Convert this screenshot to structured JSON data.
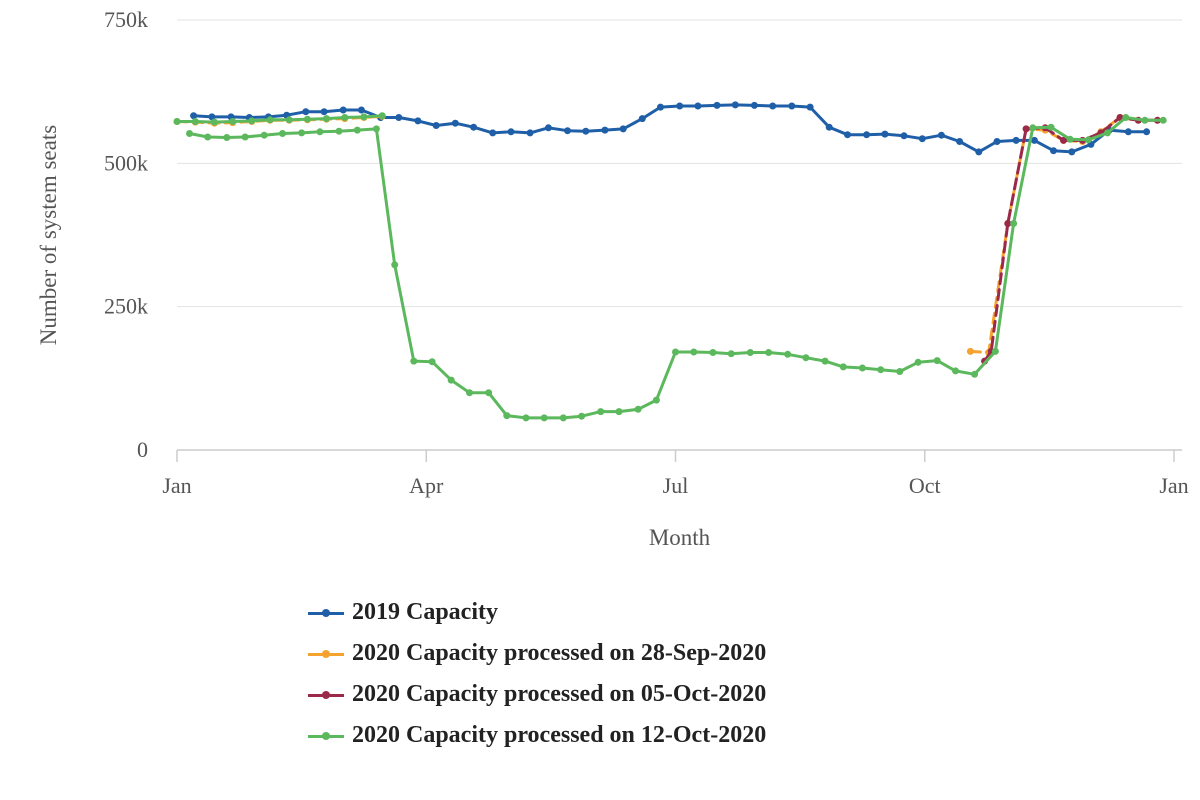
{
  "chart_data": {
    "type": "line",
    "title": "",
    "xlabel": "Month",
    "ylabel": "Number of system seats",
    "xlim": [
      0,
      12
    ],
    "ylim": [
      0,
      750000
    ],
    "x_ticks": [
      {
        "value": 0,
        "label": "Jan"
      },
      {
        "value": 3,
        "label": "Apr"
      },
      {
        "value": 6,
        "label": "Jul"
      },
      {
        "value": 9,
        "label": "Oct"
      },
      {
        "value": 12,
        "label": "Jan"
      }
    ],
    "y_ticks": [
      {
        "value": 0,
        "label": "0"
      },
      {
        "value": 250000,
        "label": "250k"
      },
      {
        "value": 500000,
        "label": "500k"
      },
      {
        "value": 750000,
        "label": "750k"
      }
    ],
    "grid": "horizontal",
    "legend_position": "bottom",
    "series": [
      {
        "name": "2019 Capacity",
        "color": "#1f5fa8",
        "dash": false,
        "points": [
          [
            0.2,
            583000
          ],
          [
            0.42,
            581000
          ],
          [
            0.65,
            581000
          ],
          [
            0.87,
            580000
          ],
          [
            1.1,
            581000
          ],
          [
            1.32,
            584000
          ],
          [
            1.55,
            590000
          ],
          [
            1.77,
            590000
          ],
          [
            2.0,
            593000
          ],
          [
            2.22,
            593000
          ],
          [
            2.45,
            580000
          ],
          [
            2.67,
            580000
          ],
          [
            2.9,
            574000
          ],
          [
            3.12,
            566000
          ],
          [
            3.35,
            570000
          ],
          [
            3.57,
            563000
          ],
          [
            3.8,
            553000
          ],
          [
            4.02,
            555000
          ],
          [
            4.25,
            553000
          ],
          [
            4.47,
            562000
          ],
          [
            4.7,
            557000
          ],
          [
            4.92,
            556000
          ],
          [
            5.15,
            558000
          ],
          [
            5.37,
            560000
          ],
          [
            5.6,
            578000
          ],
          [
            5.82,
            598000
          ],
          [
            6.05,
            600000
          ],
          [
            6.27,
            600000
          ],
          [
            6.5,
            601000
          ],
          [
            6.72,
            602000
          ],
          [
            6.95,
            601000
          ],
          [
            7.17,
            600000
          ],
          [
            7.4,
            600000
          ],
          [
            7.62,
            598000
          ],
          [
            7.85,
            563000
          ],
          [
            8.07,
            550000
          ],
          [
            8.3,
            550000
          ],
          [
            8.52,
            551000
          ],
          [
            8.75,
            548000
          ],
          [
            8.97,
            543000
          ],
          [
            9.2,
            549000
          ],
          [
            9.42,
            538000
          ],
          [
            9.65,
            520000
          ],
          [
            9.87,
            538000
          ],
          [
            10.1,
            540000
          ],
          [
            10.32,
            540000
          ],
          [
            10.55,
            522000
          ],
          [
            10.77,
            520000
          ],
          [
            11.0,
            533000
          ],
          [
            11.22,
            558000
          ],
          [
            11.45,
            555000
          ],
          [
            11.67,
            555000
          ]
        ]
      },
      {
        "name": "2020 Capacity processed on 28-Sep-2020",
        "color": "#f5a22e",
        "dash": true,
        "points": [
          [
            0.0,
            573000
          ],
          [
            0.22,
            572000
          ],
          [
            0.45,
            570000
          ],
          [
            0.67,
            571000
          ],
          [
            0.9,
            573000
          ],
          [
            1.12,
            575000
          ],
          [
            1.35,
            575000
          ],
          [
            1.57,
            576000
          ],
          [
            1.8,
            577000
          ],
          [
            2.02,
            578000
          ],
          [
            2.25,
            580000
          ],
          [
            2.47,
            582000
          ],
          [
            9.55,
            172000
          ],
          [
            9.77,
            170000
          ],
          [
            10.0,
            395000
          ],
          [
            10.22,
            560000
          ],
          [
            10.45,
            558000
          ],
          [
            10.67,
            540000
          ],
          [
            10.9,
            538000
          ],
          [
            11.12,
            555000
          ],
          [
            11.35,
            580000
          ],
          [
            11.57,
            575000
          ],
          [
            11.8,
            575000
          ]
        ]
      },
      {
        "name": "2020 Capacity processed on 05-Oct-2020",
        "color": "#9b2a4a",
        "dash": true,
        "points": [
          [
            9.72,
            155000
          ],
          [
            9.8,
            172000
          ],
          [
            10.0,
            395000
          ],
          [
            10.22,
            560000
          ],
          [
            10.45,
            562000
          ],
          [
            10.67,
            540000
          ],
          [
            10.9,
            540000
          ],
          [
            11.12,
            553000
          ],
          [
            11.35,
            580000
          ],
          [
            11.57,
            575000
          ],
          [
            11.8,
            575000
          ]
        ]
      },
      {
        "name": "2020 Capacity processed on 12-Oct-2020",
        "color": "#5cb85c",
        "dash": false,
        "points": [
          [
            0.0,
            573000
          ],
          [
            0.22,
            573000
          ],
          [
            0.45,
            572000
          ],
          [
            0.67,
            573000
          ],
          [
            0.9,
            574000
          ],
          [
            1.12,
            576000
          ],
          [
            1.35,
            576000
          ],
          [
            1.57,
            577000
          ],
          [
            1.8,
            578000
          ],
          [
            2.02,
            580000
          ],
          [
            2.25,
            581000
          ],
          [
            2.47,
            583000
          ],
          [
            0.15,
            552000
          ],
          [
            0.37,
            546000
          ],
          [
            0.6,
            545000
          ],
          [
            0.82,
            546000
          ],
          [
            1.05,
            549000
          ],
          [
            1.27,
            552000
          ],
          [
            1.5,
            553000
          ],
          [
            1.72,
            555000
          ],
          [
            1.95,
            556000
          ],
          [
            2.17,
            558000
          ],
          [
            2.4,
            560000
          ],
          [
            2.62,
            323000
          ],
          [
            2.85,
            155000
          ],
          [
            3.07,
            154000
          ],
          [
            3.3,
            122000
          ],
          [
            3.52,
            100000
          ],
          [
            3.75,
            100000
          ],
          [
            3.97,
            60000
          ],
          [
            4.2,
            56000
          ],
          [
            4.42,
            56000
          ],
          [
            4.65,
            56000
          ],
          [
            4.87,
            59000
          ],
          [
            5.1,
            67000
          ],
          [
            5.32,
            67000
          ],
          [
            5.55,
            71000
          ],
          [
            5.77,
            87000
          ],
          [
            6.0,
            171000
          ],
          [
            6.22,
            171000
          ],
          [
            6.45,
            170000
          ],
          [
            6.67,
            168000
          ],
          [
            6.9,
            170000
          ],
          [
            7.12,
            170000
          ],
          [
            7.35,
            167000
          ],
          [
            7.57,
            161000
          ],
          [
            7.8,
            155000
          ],
          [
            8.02,
            145000
          ],
          [
            8.25,
            143000
          ],
          [
            8.47,
            140000
          ],
          [
            8.7,
            137000
          ],
          [
            8.92,
            153000
          ],
          [
            9.15,
            156000
          ],
          [
            9.37,
            138000
          ],
          [
            9.6,
            132000
          ],
          [
            9.85,
            172000
          ],
          [
            10.07,
            395000
          ],
          [
            10.3,
            562000
          ],
          [
            10.52,
            563000
          ],
          [
            10.75,
            542000
          ],
          [
            10.97,
            541000
          ],
          [
            11.2,
            553000
          ],
          [
            11.42,
            580000
          ],
          [
            11.65,
            575000
          ],
          [
            11.87,
            575000
          ]
        ]
      }
    ]
  }
}
